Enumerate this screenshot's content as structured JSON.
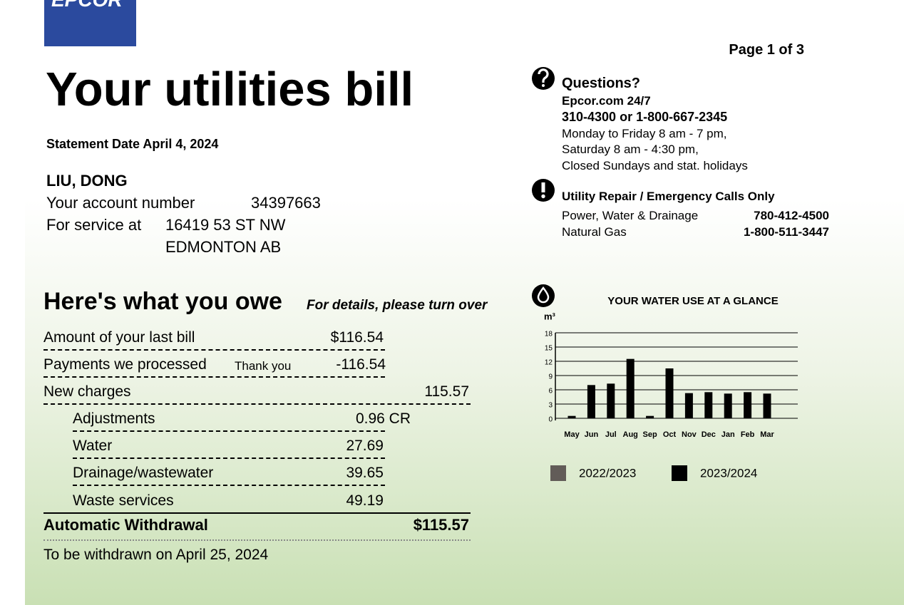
{
  "logo": "EPCOR",
  "page": "Page 1 of 3",
  "title": "Your utilities bill",
  "statement_date": "Statement Date April 4, 2024",
  "customer": {
    "name": "LIU, DONG",
    "account_label": "Your account number",
    "account_number": "34397663",
    "service_label": "For service at",
    "address_line1": "16419 53 ST NW",
    "address_line2": "EDMONTON AB"
  },
  "questions": {
    "title": "Questions?",
    "web": "Epcor.com 24/7",
    "phone": "310-4300 or 1-800-667-2345",
    "hours": [
      "Monday to Friday 8 am - 7 pm,",
      "Saturday 8 am - 4:30 pm,",
      "Closed Sundays and stat. holidays"
    ]
  },
  "emergency": {
    "title": "Utility Repair / Emergency Calls Only",
    "rows": [
      {
        "label": "Power, Water & Drainage",
        "phone": "780-412-4500"
      },
      {
        "label": "Natural Gas",
        "phone": "1-800-511-3447"
      }
    ]
  },
  "owe": {
    "title": "Here's what you owe",
    "note": "For details, please turn over",
    "last_bill": {
      "label": "Amount of your last bill",
      "amount": "$116.54"
    },
    "payments": {
      "label": "Payments we processed",
      "note": "Thank you",
      "amount": "-116.54"
    },
    "new_charges": {
      "label": "New charges",
      "amount": "115.57"
    },
    "items": [
      {
        "label": "Adjustments",
        "amount": "0.96 CR"
      },
      {
        "label": "Water",
        "amount": "27.69"
      },
      {
        "label": "Drainage/wastewater",
        "amount": "39.65"
      },
      {
        "label": "Waste services",
        "amount": "49.19"
      }
    ],
    "total": {
      "label": "Automatic Withdrawal",
      "amount": "$115.57"
    },
    "footer": "To be withdrawn on April 25, 2024"
  },
  "chart_data": {
    "type": "bar",
    "title": "YOUR WATER USE AT A GLANCE",
    "y_label": "m³",
    "categories": [
      "May",
      "Jun",
      "Jul",
      "Aug",
      "Sep",
      "Oct",
      "Nov",
      "Dec",
      "Jan",
      "Feb",
      "Mar"
    ],
    "series": [
      {
        "name": "2022/2023",
        "color": "#625c58",
        "values": [
          null,
          null,
          null,
          null,
          null,
          null,
          null,
          null,
          null,
          null,
          null
        ]
      },
      {
        "name": "2023/2024",
        "color": "#000000",
        "values": [
          0.5,
          7,
          7.3,
          12.5,
          0.5,
          10.5,
          5.3,
          5.5,
          5.2,
          5.5,
          5.2
        ]
      }
    ],
    "ylim": [
      0,
      18
    ],
    "yticks": [
      0,
      3,
      6,
      9,
      12,
      15,
      18
    ],
    "grid": true
  }
}
